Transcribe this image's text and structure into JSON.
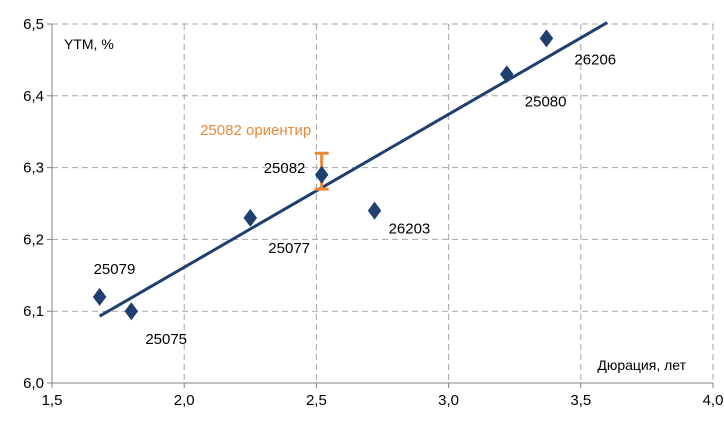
{
  "chart_data": {
    "type": "scatter",
    "ylabel": "YTM, %",
    "xlabel": "Дюрация, лет",
    "xlim": [
      1.5,
      4.0
    ],
    "ylim": [
      6.0,
      6.5
    ],
    "x_ticks": [
      "1,5",
      "2,0",
      "2,5",
      "3,0",
      "3,5",
      "4,0"
    ],
    "y_ticks": [
      "6,0",
      "6,1",
      "6,2",
      "6,3",
      "6,4",
      "6,5"
    ],
    "grid": true,
    "legend": "none",
    "points": [
      {
        "label": "25079",
        "x": 1.68,
        "y": 6.12
      },
      {
        "label": "25075",
        "x": 1.8,
        "y": 6.1
      },
      {
        "label": "25077",
        "x": 2.25,
        "y": 6.23
      },
      {
        "label": "25082",
        "x": 2.52,
        "y": 6.29
      },
      {
        "label": "26203",
        "x": 2.72,
        "y": 6.24
      },
      {
        "label": "25080",
        "x": 3.22,
        "y": 6.43
      },
      {
        "label": "26206",
        "x": 3.37,
        "y": 6.48
      }
    ],
    "trendline": {
      "x": [
        1.68,
        3.6
      ],
      "y": [
        6.093,
        6.502
      ]
    },
    "guidance": {
      "label": "25082 ориентир",
      "x": 2.52,
      "y_low": 6.27,
      "y_high": 6.32
    },
    "colors": {
      "marker": "#1F3F6F",
      "trendline": "#1F3F6F",
      "guidance": "#E8893A",
      "grid": "#A6A6A6",
      "axis": "#808080"
    }
  }
}
